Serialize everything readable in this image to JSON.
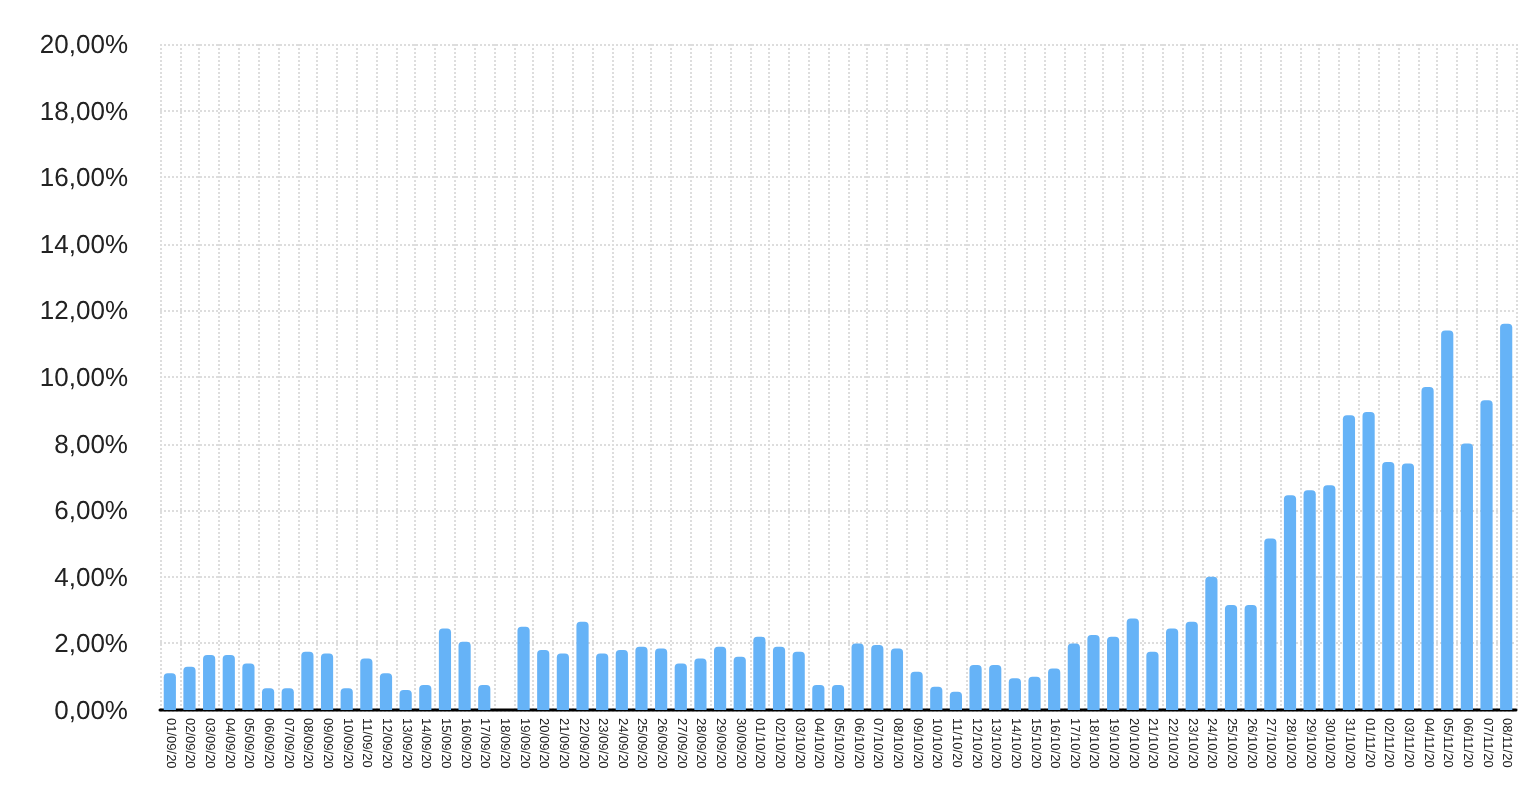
{
  "chart_data": {
    "type": "bar",
    "categories": [
      "01/09/20",
      "02/09/20",
      "03/09/20",
      "04/09/20",
      "05/09/20",
      "06/09/20",
      "07/09/20",
      "08/09/20",
      "09/09/20",
      "10/09/20",
      "11/09/20",
      "12/09/20",
      "13/09/20",
      "14/09/20",
      "15/09/20",
      "16/09/20",
      "17/09/20",
      "18/09/20",
      "19/09/20",
      "20/09/20",
      "21/09/20",
      "22/09/20",
      "23/09/20",
      "24/09/20",
      "25/09/20",
      "26/09/20",
      "27/09/20",
      "28/09/20",
      "29/09/20",
      "30/09/20",
      "01/10/20",
      "02/10/20",
      "03/10/20",
      "04/10/20",
      "05/10/20",
      "06/10/20",
      "07/10/20",
      "08/10/20",
      "09/10/20",
      "10/10/20",
      "11/10/20",
      "12/10/20",
      "13/10/20",
      "14/10/20",
      "15/10/20",
      "16/10/20",
      "17/10/20",
      "18/10/20",
      "19/10/20",
      "20/10/20",
      "21/10/20",
      "22/10/20",
      "23/10/20",
      "24/10/20",
      "25/10/20",
      "26/10/20",
      "27/10/20",
      "28/10/20",
      "29/10/20",
      "30/10/20",
      "31/10/20",
      "01/11/20",
      "02/11/20",
      "03/11/20",
      "04/11/20",
      "05/11/20",
      "06/11/20",
      "07/11/20",
      "08/11/20"
    ],
    "values": [
      1.1,
      1.3,
      1.65,
      1.65,
      1.4,
      0.65,
      0.65,
      1.75,
      1.7,
      0.65,
      1.55,
      1.1,
      0.6,
      0.75,
      2.45,
      2.05,
      0.75,
      0,
      2.5,
      1.8,
      1.7,
      2.65,
      1.7,
      1.8,
      1.9,
      1.85,
      1.4,
      1.55,
      1.9,
      1.6,
      2.2,
      1.9,
      1.75,
      0.75,
      0.75,
      2.0,
      1.95,
      1.85,
      1.15,
      0.7,
      0.55,
      1.35,
      1.35,
      0.95,
      1.0,
      1.25,
      2.0,
      2.25,
      2.2,
      2.75,
      1.75,
      2.45,
      2.65,
      4.0,
      3.15,
      3.15,
      5.15,
      6.45,
      6.6,
      6.75,
      8.85,
      8.95,
      7.45,
      7.4,
      9.7,
      11.4,
      8.0,
      9.3,
      11.6
    ],
    "color": "#66b3f7",
    "ylim": [
      0,
      20
    ],
    "yticks": [
      {
        "value": 0,
        "label": "0,00%"
      },
      {
        "value": 2,
        "label": "2,00%"
      },
      {
        "value": 4,
        "label": "4,00%"
      },
      {
        "value": 6,
        "label": "6,00%"
      },
      {
        "value": 8,
        "label": "8,00%"
      },
      {
        "value": 10,
        "label": "10,00%"
      },
      {
        "value": 12,
        "label": "12,00%"
      },
      {
        "value": 14,
        "label": "14,00%"
      },
      {
        "value": 16,
        "label": "16,00%"
      },
      {
        "value": 18,
        "label": "18,00%"
      },
      {
        "value": 20,
        "label": "20,00%"
      }
    ],
    "grid": true
  }
}
